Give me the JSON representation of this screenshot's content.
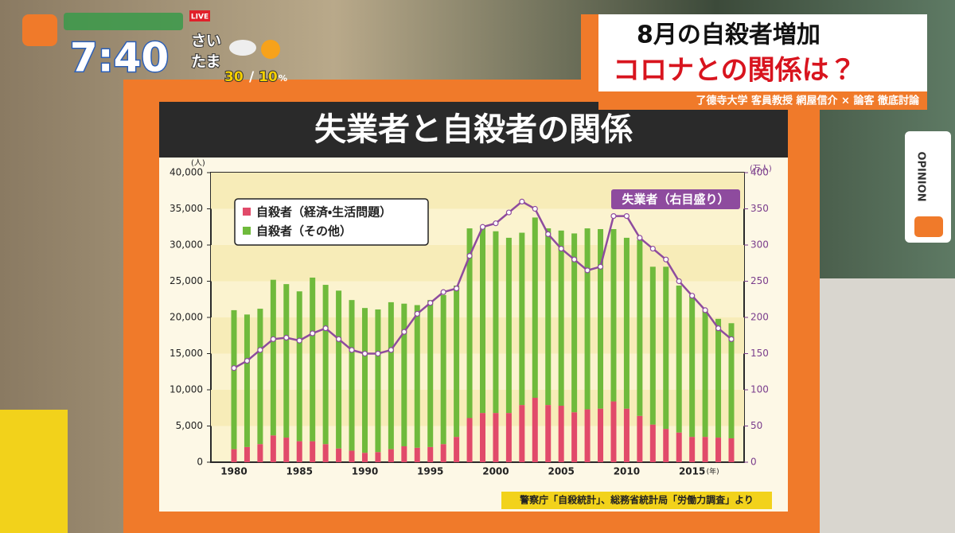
{
  "chart_data": {
    "type": "stacked-bar-line",
    "title": "失業者と自殺者の関係",
    "y_unit": "(人)",
    "y2_unit": "(万人)",
    "x_unit": "(年)",
    "source": "警察庁「自殺統計」、総務省統計局「労働力調査」より",
    "categories": [
      "1980",
      null,
      null,
      null,
      null,
      "1985",
      null,
      null,
      null,
      null,
      "1990",
      null,
      null,
      null,
      null,
      "1995",
      null,
      null,
      null,
      null,
      "2000",
      null,
      null,
      null,
      null,
      "2005",
      null,
      null,
      null,
      null,
      "2010",
      null,
      null,
      null,
      null,
      "2015",
      null,
      null,
      null
    ],
    "series": [
      {
        "name": "自殺者（経済・生活問題）",
        "color": "#e14a6a",
        "kind": "bar",
        "values": [
          1800,
          2100,
          2500,
          3700,
          3400,
          2900,
          2900,
          2500,
          1900,
          1600,
          1300,
          1400,
          1800,
          2200,
          2000,
          2100,
          2500,
          3500,
          6100,
          6800,
          6800,
          6800,
          7900,
          8900,
          7900,
          7800,
          6900,
          7300,
          7400,
          8400,
          7400,
          6400,
          5200,
          4600,
          4100,
          3500,
          3500,
          3400,
          3300
        ]
      },
      {
        "name": "自殺者（その他）",
        "color": "#6fba3c",
        "kind": "bar",
        "values": [
          19200,
          18300,
          18700,
          21500,
          21200,
          20700,
          22600,
          22000,
          21800,
          20800,
          20000,
          19700,
          20300,
          19700,
          19700,
          20300,
          20600,
          20900,
          26200,
          25700,
          25100,
          24200,
          23800,
          24900,
          24400,
          24200,
          24700,
          25000,
          24800,
          23800,
          23600,
          24300,
          21800,
          22400,
          20300,
          19500,
          17400,
          16400,
          15900
        ]
      },
      {
        "name": "失業者（右目盛り）",
        "color": "#8e4b9e",
        "kind": "line",
        "axis": "y2",
        "values": [
          130,
          140,
          155,
          170,
          172,
          168,
          178,
          185,
          170,
          155,
          150,
          150,
          155,
          180,
          205,
          220,
          235,
          240,
          285,
          325,
          330,
          345,
          360,
          350,
          315,
          295,
          280,
          265,
          270,
          340,
          340,
          310,
          295,
          280,
          250,
          230,
          210,
          185,
          170
        ]
      }
    ],
    "ylim": [
      0,
      40000
    ],
    "yticks": [
      0,
      {
        "value": 5000,
        "label": "5,000"
      },
      {
        "value": 10000,
        "label": "10,000"
      },
      {
        "value": 15000,
        "label": "15,000"
      },
      {
        "value": 20000,
        "label": "20,000"
      },
      {
        "value": 25000,
        "label": "25,000"
      },
      {
        "value": 30000,
        "label": "30,000"
      },
      {
        "value": 35000,
        "label": "35,000"
      },
      {
        "value": 40000,
        "label": "40,000"
      }
    ],
    "y2lim": [
      0,
      400
    ],
    "y2ticks": [
      0,
      50,
      100,
      150,
      200,
      250,
      300,
      350,
      400
    ],
    "legend": "upper-left"
  },
  "overlay": {
    "headline": [
      "8月の自殺者増加",
      "コロナとの関係は？"
    ],
    "byline": "了德寺大学 客員教授 網屋信介 × 論客 徹底討論",
    "clock": "7:40",
    "live": "LIVE",
    "weather": {
      "city_top": "さい",
      "city_bottom": "たま",
      "high": "30",
      "sep": "/",
      "precip": "10",
      "unit": "%"
    },
    "side_tab": "OPINION"
  }
}
